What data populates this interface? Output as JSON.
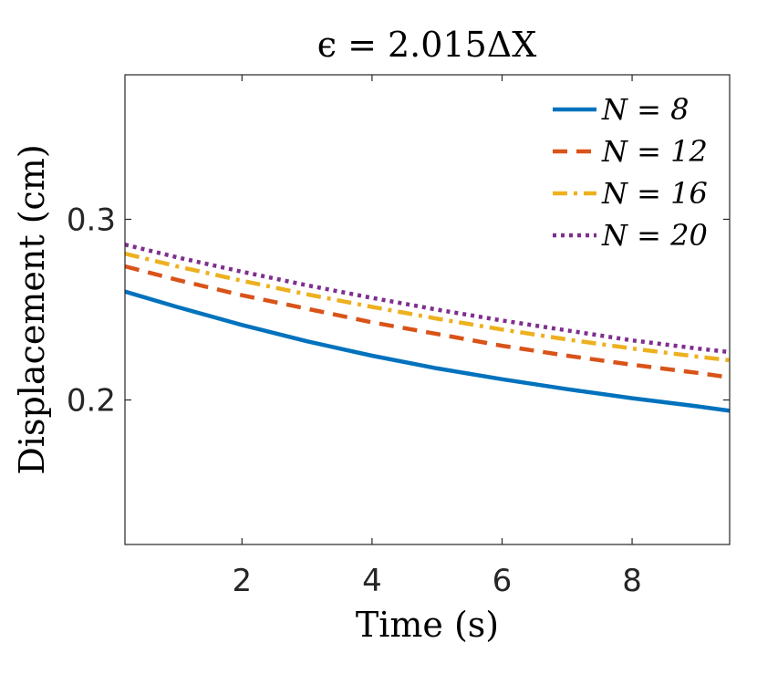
{
  "chart_data": {
    "type": "line",
    "title": "ϵ = 2.015ΔX",
    "xlabel": "Time (s)",
    "ylabel": "Displacement (cm)",
    "xlim": [
      0.2,
      9.5
    ],
    "ylim": [
      0.12,
      0.38
    ],
    "xticks": [
      2,
      4,
      6,
      8
    ],
    "xtick_labels": [
      "2",
      "4",
      "6",
      "8"
    ],
    "yticks": [
      0.2,
      0.3
    ],
    "ytick_labels": [
      "0.2",
      "0.3"
    ],
    "grid": false,
    "legend_position": "top-right",
    "x": [
      0.2,
      1,
      2,
      3,
      4,
      5,
      6,
      7,
      8,
      9,
      9.5
    ],
    "series": [
      {
        "name": "N = 8",
        "legend_label": "N = 8",
        "color": "#0072BD",
        "dash": "solid",
        "values": [
          0.26,
          0.2515,
          0.2415,
          0.2325,
          0.2245,
          0.2175,
          0.2115,
          0.206,
          0.201,
          0.1965,
          0.194
        ]
      },
      {
        "name": "N = 12",
        "legend_label": "N = 12",
        "color": "#D95319",
        "dash": "dashed",
        "values": [
          0.274,
          0.2665,
          0.258,
          0.2505,
          0.243,
          0.2365,
          0.23,
          0.2245,
          0.2195,
          0.215,
          0.2125
        ]
      },
      {
        "name": "N = 16",
        "legend_label": "N = 16",
        "color": "#EDB120",
        "dash": "dashdot",
        "values": [
          0.281,
          0.274,
          0.266,
          0.2585,
          0.2515,
          0.245,
          0.239,
          0.2335,
          0.2285,
          0.224,
          0.222
        ]
      },
      {
        "name": "N = 20",
        "legend_label": "N = 20",
        "color": "#7E2F8E",
        "dash": "dotted",
        "values": [
          0.286,
          0.279,
          0.271,
          0.2635,
          0.2565,
          0.25,
          0.244,
          0.2385,
          0.233,
          0.2285,
          0.2265
        ]
      }
    ]
  }
}
